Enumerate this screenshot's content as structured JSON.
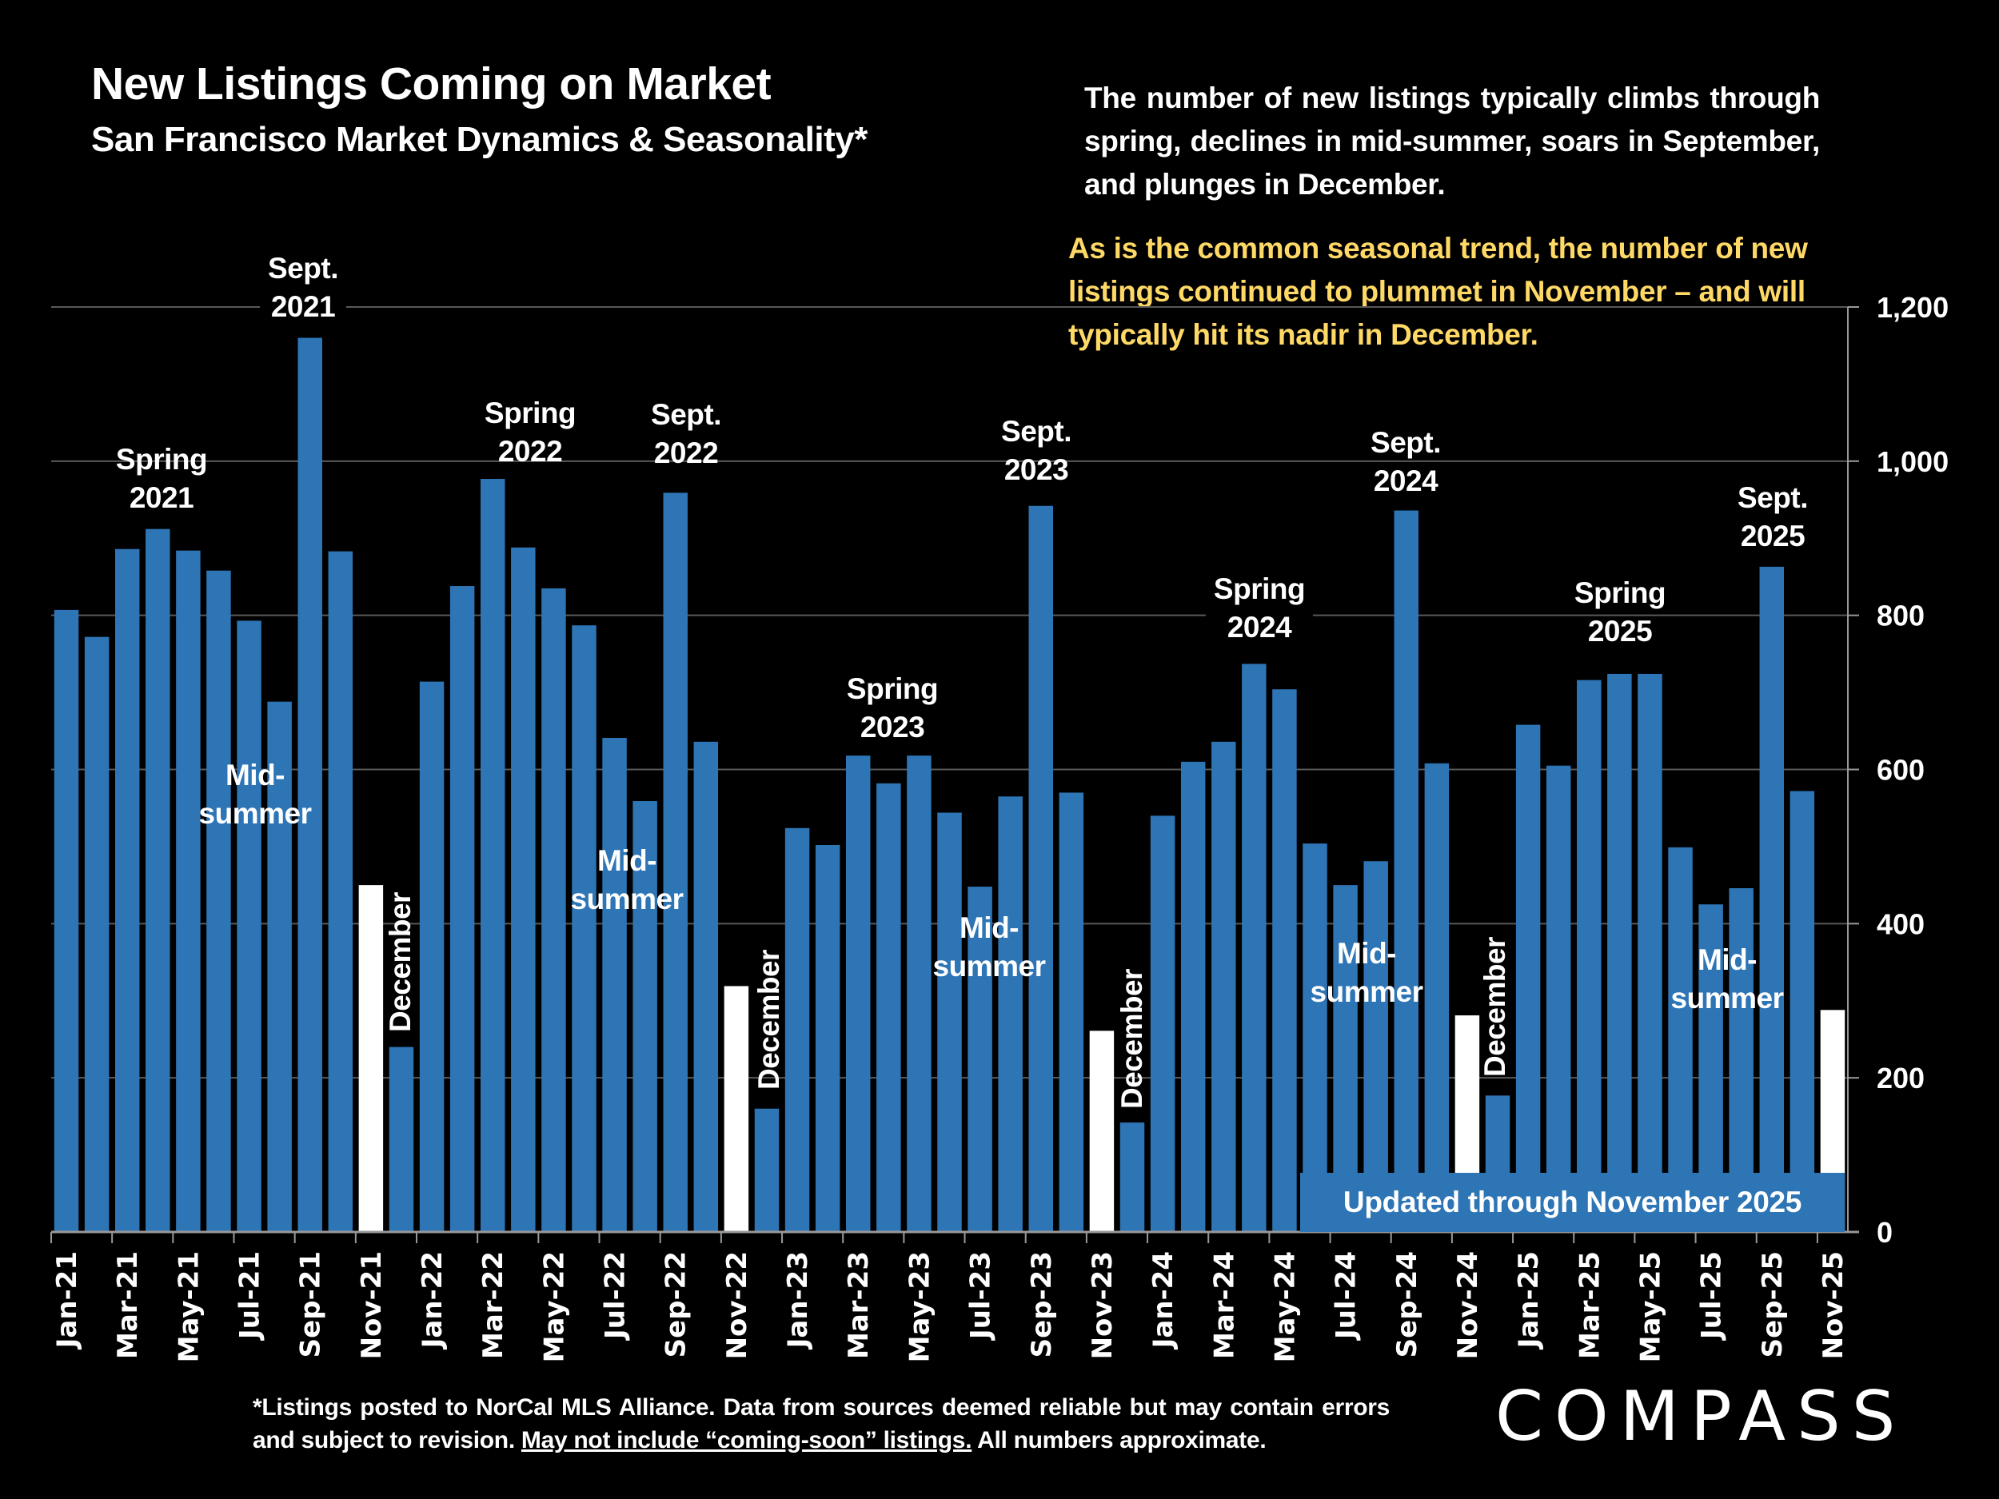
{
  "header": {
    "title": "New Listings Coming on Market",
    "subtitle": "San Francisco Market Dynamics & Seasonality*"
  },
  "description": "The number of new listings typically climbs through spring, declines in mid-summer, soars in September, and plunges in December.",
  "highlight_note": "As is the common seasonal trend, the number of new listings continued to plummet in November – and will typically hit its nadir in December.",
  "updated_label": "Updated through November 2025",
  "footer": {
    "part1": "*Listings posted to NorCal MLS Alliance. Data from sources deemed reliable but may contain errors and subject to revision. ",
    "underlined": "May not include “coming-soon” listings.",
    "part2": " All numbers approximate."
  },
  "logo_text": "COMPASS",
  "annotations": {
    "spring2021": "Spring\n2021",
    "sept2021": "Sept.\n2021",
    "mid2021": "Mid-\nsummer",
    "dec2021": "December",
    "spring2022": "Spring\n2022",
    "sept2022": "Sept.\n2022",
    "mid2022": "Mid-\nsummer",
    "dec2022": "December",
    "spring2023": "Spring\n2023",
    "sept2023": "Sept.\n2023",
    "mid2023": "Mid-\nsummer",
    "dec2023": "December",
    "spring2024": "Spring\n2024",
    "sept2024": "Sept.\n2024",
    "mid2024": "Mid-\nsummer",
    "dec2024": "December",
    "spring2025": "Spring\n2025",
    "sept2025": "Sept.\n2025",
    "mid2025": "Mid-\nsummer"
  },
  "colors": {
    "bar": "#2E75B6",
    "november_bar": "#FFFFFF",
    "highlight_text": "#FFD966",
    "background": "#000000"
  },
  "chart_data": {
    "type": "bar",
    "title": "New Listings Coming on Market",
    "ylim": [
      0,
      1200
    ],
    "yticks": [
      0,
      200,
      400,
      600,
      800,
      1000,
      1200
    ],
    "ytick_labels": [
      "0",
      "200",
      "400",
      "600",
      "800",
      "1,000",
      "1,200"
    ],
    "y_axis_side": "right",
    "grid": true,
    "categories": [
      "Jan-21",
      "Feb-21",
      "Mar-21",
      "Apr-21",
      "May-21",
      "Jun-21",
      "Jul-21",
      "Aug-21",
      "Sep-21",
      "Oct-21",
      "Nov-21",
      "Dec-21",
      "Jan-22",
      "Feb-22",
      "Mar-22",
      "Apr-22",
      "May-22",
      "Jun-22",
      "Jul-22",
      "Aug-22",
      "Sep-22",
      "Oct-22",
      "Nov-22",
      "Dec-22",
      "Jan-23",
      "Feb-23",
      "Mar-23",
      "Apr-23",
      "May-23",
      "Jun-23",
      "Jul-23",
      "Aug-23",
      "Sep-23",
      "Oct-23",
      "Nov-23",
      "Dec-23",
      "Jan-24",
      "Feb-24",
      "Mar-24",
      "Apr-24",
      "May-24",
      "Jun-24",
      "Jul-24",
      "Aug-24",
      "Sep-24",
      "Oct-24",
      "Nov-24",
      "Dec-24",
      "Jan-25",
      "Feb-25",
      "Mar-25",
      "Apr-25",
      "May-25",
      "Jun-25",
      "Jul-25",
      "Aug-25",
      "Sep-25",
      "Oct-25",
      "Nov-25"
    ],
    "values": [
      807,
      772,
      886,
      912,
      884,
      858,
      793,
      688,
      1160,
      883,
      450,
      240,
      714,
      838,
      977,
      888,
      835,
      787,
      641,
      559,
      959,
      636,
      319,
      160,
      524,
      502,
      618,
      582,
      618,
      544,
      448,
      565,
      942,
      570,
      261,
      142,
      540,
      610,
      636,
      737,
      704,
      504,
      450,
      481,
      936,
      608,
      281,
      177,
      658,
      605,
      716,
      724,
      724,
      499,
      425,
      446,
      863,
      572,
      288
    ],
    "highlighted_months": [
      "Nov-21",
      "Nov-22",
      "Nov-23",
      "Nov-24",
      "Nov-25"
    ]
  }
}
